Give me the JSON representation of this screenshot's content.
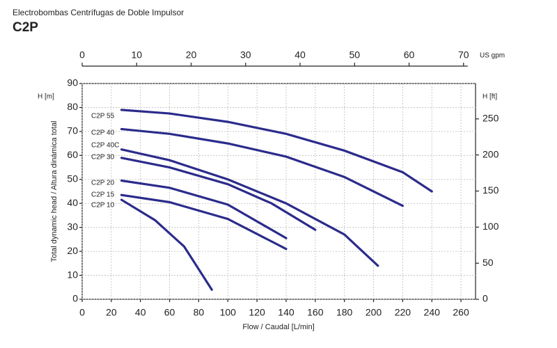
{
  "chart_data": {
    "type": "line",
    "header": "Electrobombas Centrífugas de Doble Impulsor",
    "title": "C2P",
    "xlabel": "Flow / Caudal [L/min]",
    "ylabel": "Total dynamic head / Altura dinámica total",
    "y_unit": "H [m]",
    "y2_unit": "H [ft]",
    "x2_unit": "US gpm",
    "xlim": [
      0,
      270
    ],
    "xticks": [
      0,
      20,
      40,
      60,
      80,
      100,
      120,
      140,
      160,
      180,
      200,
      220,
      240,
      260
    ],
    "ylim": [
      0,
      90
    ],
    "yticks": [
      0,
      10,
      20,
      30,
      40,
      50,
      60,
      70,
      80,
      90
    ],
    "y2lim": [
      0,
      299
    ],
    "y2ticks": [
      0,
      50,
      100,
      150,
      200,
      250
    ],
    "x2lim": [
      0,
      72.2
    ],
    "x2ticks": [
      0,
      10,
      20,
      30,
      40,
      50,
      60,
      70
    ],
    "grid": true,
    "series": [
      {
        "name": "C2P 55",
        "color": "#2b2b8c",
        "x": [
          27,
          60,
          100,
          140,
          180,
          220,
          240
        ],
        "values": [
          79,
          77.5,
          74,
          69,
          62,
          53,
          45
        ]
      },
      {
        "name": "C2P 40",
        "color": "#2b2b8c",
        "x": [
          27,
          60,
          100,
          140,
          180,
          220
        ],
        "values": [
          71,
          69,
          65,
          59.5,
          51,
          39
        ]
      },
      {
        "name": "C2P 40C",
        "color": "#2b2b8c",
        "x": [
          27,
          60,
          100,
          140,
          180,
          203
        ],
        "values": [
          62.5,
          58,
          50,
          40,
          27,
          14
        ]
      },
      {
        "name": "C2P 30",
        "color": "#2b2b8c",
        "x": [
          27,
          60,
          100,
          130,
          160
        ],
        "values": [
          59,
          55,
          48,
          40,
          29
        ]
      },
      {
        "name": "C2P 20",
        "color": "#2b2b8c",
        "x": [
          27,
          60,
          100,
          140
        ],
        "values": [
          49.5,
          46.5,
          39.5,
          25.5
        ]
      },
      {
        "name": "C2P 15",
        "color": "#2b2b8c",
        "x": [
          27,
          60,
          100,
          140
        ],
        "values": [
          43.5,
          40.5,
          33.5,
          21
        ]
      },
      {
        "name": "C2P 10",
        "color": "#2b2b8c",
        "x": [
          27,
          50,
          70,
          89
        ],
        "values": [
          41.5,
          33,
          22,
          4
        ]
      }
    ]
  }
}
